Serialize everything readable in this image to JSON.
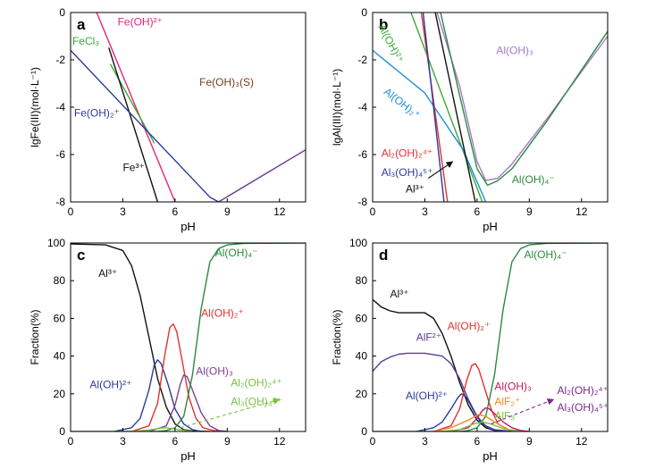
{
  "chart_data": [
    {
      "panel": "a",
      "type": "line",
      "xlabel": "pH",
      "ylabel": "lgFe(III)(mol·L⁻¹)",
      "xlim": [
        0,
        13.5
      ],
      "ylim": [
        -8,
        0
      ],
      "xticks": [
        0,
        3,
        6,
        9,
        12
      ],
      "yticks": [
        0,
        -2,
        -4,
        -6,
        -8
      ],
      "series": [
        {
          "name": "Fe(OH)²⁺",
          "color": "#e8237a",
          "x": [
            1.5,
            6.0
          ],
          "y": [
            0,
            -8
          ]
        },
        {
          "name": "FeCl₃",
          "color": "#3aaa35",
          "x": [
            2.3,
            4.8
          ],
          "y": [
            -2.2,
            -5.5
          ]
        },
        {
          "name": "Fe³⁺",
          "color": "#111111",
          "x": [
            2.2,
            5.0
          ],
          "y": [
            -1.5,
            -8
          ]
        },
        {
          "name": "Fe(OH)₂⁺",
          "color": "#2a3a9a",
          "x": [
            0,
            8.0,
            8.5
          ],
          "y": [
            -1.6,
            -7.8,
            -8
          ]
        },
        {
          "name": "",
          "color": "#6a3d99",
          "x": [
            8.5,
            13.5
          ],
          "y": [
            -8,
            -5.8
          ]
        }
      ],
      "labels": [
        {
          "id": "feoh2",
          "text": "Fe(OH)²⁺",
          "color": "#e8237a",
          "x": 2.7,
          "y": -0.55
        },
        {
          "id": "fecl3",
          "text": "FeCl₃",
          "color": "#3aaa35",
          "x": 0.1,
          "y": -1.35
        },
        {
          "id": "feoh3s",
          "text": "Fe(OH)₃(S)",
          "color": "#7a3a1a",
          "x": 7.4,
          "y": -3.1
        },
        {
          "id": "feoh2plus",
          "text": "Fe(OH)₂⁺",
          "color": "#2a3a9a",
          "x": 0.2,
          "y": -4.4
        },
        {
          "id": "fe3",
          "text": "Fe³⁺",
          "color": "#111111",
          "x": 3.0,
          "y": -6.7
        }
      ]
    },
    {
      "panel": "b",
      "type": "line",
      "xlabel": "pH",
      "ylabel": "lgAl(III)(mol·L⁻¹)",
      "xlim": [
        0,
        13.5
      ],
      "ylim": [
        -8,
        0
      ],
      "xticks": [
        0,
        3,
        6,
        9,
        12
      ],
      "yticks": [
        0,
        -2,
        -4,
        -6,
        -8
      ],
      "series": [
        {
          "name": "Al(OH)²⁺",
          "color": "#3aaa35",
          "x": [
            2.2,
            6.3
          ],
          "y": [
            0,
            -8
          ]
        },
        {
          "name": "Al(OH)₂⁺",
          "color": "#1e8fd6",
          "x": [
            0,
            3,
            5.2,
            6.5
          ],
          "y": [
            -1.6,
            -3.4,
            -5.8,
            -8
          ]
        },
        {
          "name": "Al₂(OH)₂⁴⁺",
          "color": "#e53030",
          "x": [
            2.8,
            4.3
          ],
          "y": [
            0,
            -8
          ]
        },
        {
          "name": "Al₃(OH)₄⁵⁺",
          "color": "#2a3a9a",
          "x": [
            2.9,
            4.1
          ],
          "y": [
            0,
            -8
          ]
        },
        {
          "name": "Al³⁺",
          "color": "#111111",
          "x": [
            3.6,
            5.9
          ],
          "y": [
            0,
            -8
          ]
        },
        {
          "name": "Al(OH)₃",
          "color": "#a878c8",
          "x": [
            3.7,
            5,
            6.0,
            6.5,
            7.2,
            8,
            10,
            13.5
          ],
          "y": [
            0,
            -3.1,
            -6.3,
            -7.1,
            -7.0,
            -6.4,
            -4.5,
            -1.0
          ]
        },
        {
          "name": "Al(OH)₄⁻",
          "color": "#2b8a3e",
          "x": [
            3.9,
            5,
            6.0,
            6.6,
            7.2,
            8,
            10,
            13.5
          ],
          "y": [
            0,
            -3.5,
            -6.6,
            -7.3,
            -7.1,
            -6.6,
            -4.6,
            -0.8
          ]
        }
      ],
      "labels": [
        {
          "id": "aloh2",
          "text": "Al(OH)²⁺",
          "color": "#3aaa35",
          "x": 0.3,
          "y": -0.6,
          "rotate": 62
        },
        {
          "id": "aloh3",
          "text": "Al(OH)₃",
          "color": "#a878c8",
          "x": 7.1,
          "y": -1.75
        },
        {
          "id": "aloh2plus",
          "text": "Al(OH)₂⁺",
          "color": "#1e8fd6",
          "x": 0.6,
          "y": -3.4,
          "rotate": 38
        },
        {
          "id": "al2oh2",
          "text": "Al₂(OH)₂⁴⁺",
          "color": "#e53030",
          "x": 0.5,
          "y": -6.1
        },
        {
          "id": "al3oh4",
          "text": "Al₃(OH)₄⁵⁺",
          "color": "#2a3a9a",
          "x": 0.5,
          "y": -6.9
        },
        {
          "id": "al3",
          "text": "Al³⁺",
          "color": "#111111",
          "x": 1.9,
          "y": -7.6
        },
        {
          "id": "aloh4",
          "text": "Al(OH)₄⁻",
          "color": "#2b8a3e",
          "x": 8.0,
          "y": -7.2
        }
      ],
      "arrow": {
        "from": [
          3.2,
          -7.0
        ],
        "to": [
          4.6,
          -6.3
        ],
        "color": "#111111"
      }
    },
    {
      "panel": "c",
      "type": "line",
      "xlabel": "pH",
      "ylabel": "Fraction(%)",
      "xlim": [
        0,
        13.5
      ],
      "ylim": [
        0,
        100
      ],
      "xticks": [
        0,
        3,
        6,
        9,
        12
      ],
      "yticks": [
        0,
        20,
        40,
        60,
        80,
        100
      ],
      "series": [
        {
          "name": "Al³⁺",
          "color": "#111111",
          "x": [
            0,
            2,
            3,
            3.5,
            4,
            4.5,
            5,
            5.5,
            6,
            6.5,
            7,
            8
          ],
          "y": [
            99.5,
            99,
            96,
            88,
            72,
            50,
            28,
            13,
            4,
            1,
            0.3,
            0
          ]
        },
        {
          "name": "Al(OH)²⁺",
          "color": "#2a3a9a",
          "x": [
            2.5,
            3.5,
            4,
            4.5,
            4.8,
            5.0,
            5.2,
            5.6,
            6,
            6.5,
            7,
            7.5
          ],
          "y": [
            0,
            2,
            7,
            22,
            35,
            38,
            36,
            25,
            12,
            4,
            1,
            0
          ]
        },
        {
          "name": "Al(OH)₂⁺",
          "color": "#e53030",
          "x": [
            3.5,
            4.5,
            5,
            5.4,
            5.7,
            5.9,
            6.1,
            6.4,
            6.8,
            7.2,
            7.6,
            8.2,
            9
          ],
          "y": [
            0,
            3,
            15,
            40,
            55,
            57,
            53,
            38,
            18,
            7,
            2,
            0.5,
            0
          ]
        },
        {
          "name": "Al(OH)₃",
          "color": "#7b3f99",
          "x": [
            4.5,
            5.5,
            6,
            6.3,
            6.5,
            6.7,
            7,
            7.5,
            8,
            8.5,
            9
          ],
          "y": [
            0,
            3,
            14,
            25,
            30,
            29,
            22,
            10,
            3,
            0.5,
            0
          ]
        },
        {
          "name": "Al(OH)₄⁻",
          "color": "#2b8a3e",
          "x": [
            0,
            5,
            5.5,
            6,
            6.5,
            7,
            7.5,
            8,
            8.5,
            9,
            10,
            13.5
          ],
          "y": [
            0,
            0,
            0.5,
            2,
            8,
            30,
            65,
            90,
            97,
            99,
            99.8,
            100
          ]
        },
        {
          "name": "Al₂(OH)₂⁴⁺",
          "color": "#7ac143",
          "x": [
            3.5,
            4.5,
            5.2,
            5.5,
            6.0,
            7.0
          ],
          "y": [
            0,
            0.8,
            1.8,
            2.0,
            1.3,
            0
          ]
        }
      ],
      "labels": [
        {
          "id": "al3",
          "text": "Al³⁺",
          "color": "#111111",
          "x": 1.6,
          "y": 82
        },
        {
          "id": "aloh4",
          "text": "Al(OH)₄⁻",
          "color": "#2b8a3e",
          "x": 8.3,
          "y": 93
        },
        {
          "id": "aloh2plus",
          "text": "Al(OH)₂⁺",
          "color": "#e53030",
          "x": 7.5,
          "y": 61
        },
        {
          "id": "aloh2",
          "text": "Al(OH)²⁺",
          "color": "#2a3a9a",
          "x": 1.1,
          "y": 23
        },
        {
          "id": "aloh3",
          "text": "Al(OH)₃",
          "color": "#7b3f99",
          "x": 7.2,
          "y": 30
        },
        {
          "id": "al2oh2",
          "text": "Al₂(OH)₂⁴⁺",
          "color": "#7ac143",
          "x": 9.2,
          "y": 24
        },
        {
          "id": "al3oh4",
          "text": "Al₃(OH)₄⁵⁺",
          "color": "#7ac143",
          "x": 9.2,
          "y": 14
        }
      ],
      "arrow": {
        "from": [
          6.3,
          2
        ],
        "to": [
          12.0,
          17
        ],
        "color": "#7ac143",
        "dashed": true
      }
    },
    {
      "panel": "d",
      "type": "line",
      "xlabel": "pH",
      "ylabel": "Fraction(%)",
      "xlim": [
        0,
        13.5
      ],
      "ylim": [
        0,
        100
      ],
      "xticks": [
        0,
        3,
        6,
        9,
        12
      ],
      "yticks": [
        0,
        20,
        40,
        60,
        80,
        100
      ],
      "series": [
        {
          "name": "Al³⁺",
          "color": "#111111",
          "x": [
            0,
            0.5,
            1,
            1.5,
            2,
            3,
            3.5,
            4,
            4.5,
            5,
            5.5,
            6,
            6.5,
            7,
            8
          ],
          "y": [
            70,
            66,
            64,
            63,
            63,
            63,
            60,
            52,
            40,
            26,
            14,
            6,
            2,
            0.5,
            0
          ]
        },
        {
          "name": "AlF²⁺",
          "color": "#5a3d99",
          "x": [
            0,
            0.5,
            1,
            1.5,
            2,
            3,
            4,
            4.5,
            5,
            5.5,
            6,
            6.5,
            7,
            8
          ],
          "y": [
            32,
            37,
            39.5,
            41,
            41.5,
            41.5,
            40,
            36,
            28,
            17,
            8,
            3,
            1,
            0
          ]
        },
        {
          "name": "Al(OH)²⁺",
          "color": "#2a3a9a",
          "x": [
            2.5,
            3.5,
            4,
            4.5,
            4.9,
            5.1,
            5.4,
            5.8,
            6.2,
            6.8,
            7.5
          ],
          "y": [
            0,
            2,
            5,
            12,
            18,
            20,
            18,
            11,
            5,
            1,
            0
          ]
        },
        {
          "name": "Al(OH)₂⁺",
          "color": "#e53030",
          "x": [
            3.5,
            4.5,
            5,
            5.4,
            5.7,
            5.9,
            6.1,
            6.4,
            6.8,
            7.2,
            7.8,
            8.5
          ],
          "y": [
            0,
            3,
            12,
            27,
            35,
            36,
            33,
            24,
            12,
            4,
            1,
            0
          ]
        },
        {
          "name": "Al(OH)₃",
          "color": "#c2185b",
          "x": [
            4.5,
            5.5,
            6,
            6.3,
            6.5,
            6.7,
            7,
            7.5,
            8,
            8.5,
            9
          ],
          "y": [
            0,
            2,
            7,
            11,
            12.5,
            12,
            9.5,
            5,
            2,
            0.5,
            0
          ]
        },
        {
          "name": "Al(OH)₄⁻",
          "color": "#2b8a3e",
          "x": [
            0,
            5,
            5.5,
            6,
            6.5,
            7,
            7.5,
            8,
            8.5,
            9,
            10,
            13.5
          ],
          "y": [
            0,
            0,
            0.5,
            2,
            8,
            30,
            65,
            90,
            97,
            99,
            99.8,
            100
          ]
        },
        {
          "name": "AlF₂⁺",
          "color": "#f08a24",
          "x": [
            3.5,
            4.5,
            5.5,
            6.1,
            6.5,
            7,
            7.8,
            8.5
          ],
          "y": [
            0,
            2,
            6,
            9,
            8,
            5,
            1,
            0
          ]
        },
        {
          "name": "AlF₃",
          "color": "#7ac143",
          "x": [
            4,
            5,
            5.8,
            6.3,
            6.8,
            7.5,
            8.5
          ],
          "y": [
            0,
            1,
            4,
            5,
            4,
            1.5,
            0
          ]
        }
      ],
      "labels": [
        {
          "id": "al3",
          "text": "Al³⁺",
          "color": "#111111",
          "x": 1.0,
          "y": 71
        },
        {
          "id": "aloh4",
          "text": "Al(OH)₄⁻",
          "color": "#2b8a3e",
          "x": 8.7,
          "y": 92
        },
        {
          "id": "aloh2plus",
          "text": "Al(OH)₂⁺",
          "color": "#e53030",
          "x": 4.3,
          "y": 54
        },
        {
          "id": "alf2",
          "text": "AlF²⁺",
          "color": "#5a3d99",
          "x": 2.5,
          "y": 48
        },
        {
          "id": "aloh2",
          "text": "Al(OH)²⁺",
          "color": "#2a3a9a",
          "x": 1.9,
          "y": 17
        },
        {
          "id": "aloh3",
          "text": "Al(OH)₃",
          "color": "#c2185b",
          "x": 7.0,
          "y": 22
        },
        {
          "id": "alf2plus",
          "text": "AlF₂⁺",
          "color": "#f08a24",
          "x": 7.0,
          "y": 14
        },
        {
          "id": "alf3",
          "text": "AlF₃",
          "color": "#7ac143",
          "x": 7.0,
          "y": 6.5
        },
        {
          "id": "al2oh2",
          "text": "Al₂(OH)₂⁴⁺",
          "color": "#7b2a8a",
          "x": 10.6,
          "y": 20
        },
        {
          "id": "al3oh4",
          "text": "Al₃(OH)₄⁵⁺",
          "color": "#7b2a8a",
          "x": 10.6,
          "y": 11
        }
      ],
      "arrow": {
        "from": [
          6.8,
          4
        ],
        "to": [
          10.4,
          17
        ],
        "color": "#7b2a8a",
        "dashed": true
      }
    }
  ]
}
